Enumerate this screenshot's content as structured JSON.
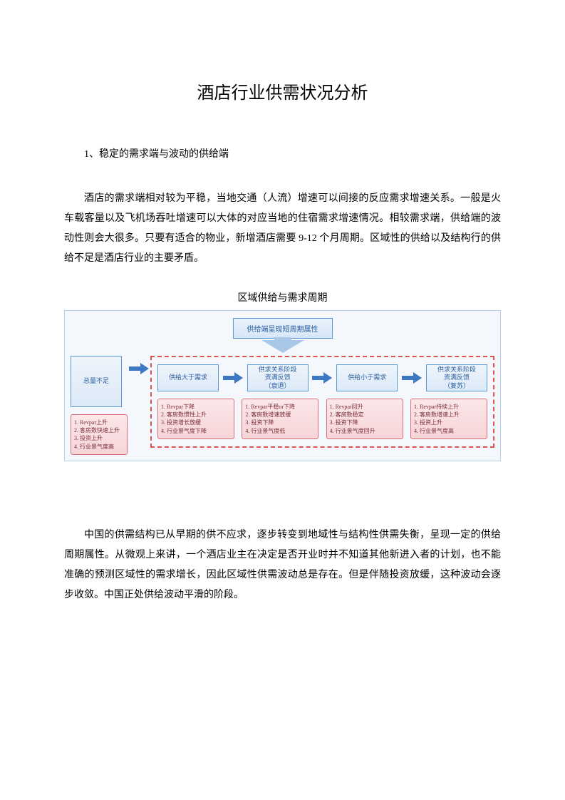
{
  "title": "酒店行业供需状况分析",
  "section_heading": "1、稳定的需求端与波动的供给端",
  "paragraph1": "酒店的需求端相对较为平稳，当地交通（人流）增速可以间接的反应需求增速关系。一般是火车载客量以及飞机场吞吐增速可以大体的对应当地的住宿需求增速情况。相较需求端，供给端的波动性则会大很多。只要有适合的物业，新增酒店需要 9-12 个月周期。区域性的供给以及结构行的供给不足是酒店行业的主要矛盾。",
  "chart_caption": "区域供给与需求周期",
  "paragraph2": "中国的供需结构已从早期的供不应求，逐步转变到地域性与结构性供需失衡，呈现一定的供给周期属性。从微观上来讲，一个酒店业主在决定是否开业时并不知道其他新进入者的计划，也不能准确的预测区域性的需求增长，因此区域性供需波动总是存在。但是伴随投资放缓，这种波动会逐步收敛。中国正处供给波动平滑的阶段。",
  "diagram": {
    "type": "flowchart",
    "top_label": "供给端呈现短周期属性",
    "background_color": "#f4f8fc",
    "border_color": "#b8d0e8",
    "dashed_border_color": "#d9534f",
    "stage_box": {
      "bg_gradient_top": "#eef5fc",
      "bg_gradient_bottom": "#dce9f7",
      "border_color": "#5b9bd5",
      "text_color": "#2a5d9e",
      "fontsize": 9
    },
    "info_card": {
      "bg_gradient_top": "#fbe7e9",
      "bg_gradient_bottom": "#f6d4d8",
      "border_color": "#d86f77",
      "text_color": "#7a2e35",
      "fontsize": 8
    },
    "arrow_color": "#3d78c2",
    "down_arrow_color": "#a9c8e8",
    "outside_stage": {
      "label": "总量不足"
    },
    "inside_stages": [
      {
        "label": "供给大于需求"
      },
      {
        "label_l1": "供求关系阶段",
        "label_l2": "资满反馈",
        "label_l3": "（衰退）"
      },
      {
        "label": "供给小于需求"
      },
      {
        "label_l1": "供求关系阶段",
        "label_l2": "资满反馈",
        "label_l3": "（复苏）"
      }
    ],
    "outside_card": {
      "lines": [
        "1. Revpar上升",
        "2. 客房数快速上升",
        "3. 投资上升",
        "4. 行业景气度高"
      ]
    },
    "inside_cards": [
      {
        "lines": [
          "1. Revpar下降",
          "2. 客房数惯性上升",
          "3. 投资增长放缓",
          "4. 行业景气度下降"
        ]
      },
      {
        "lines": [
          "1. Revpar平稳or下降",
          "2. 客房数增速放缓",
          "3. 投资下降",
          "4. 行业景气度低"
        ]
      },
      {
        "lines": [
          "1. Revpar回升",
          "2. 客房数稳定",
          "3. 投资下降",
          "4. 行业景气度回升"
        ]
      },
      {
        "lines": [
          "1. Revpar持续上升",
          "2. 客房数增速上升",
          "3. 投资上升",
          "4. 行业景气度高"
        ]
      }
    ]
  }
}
